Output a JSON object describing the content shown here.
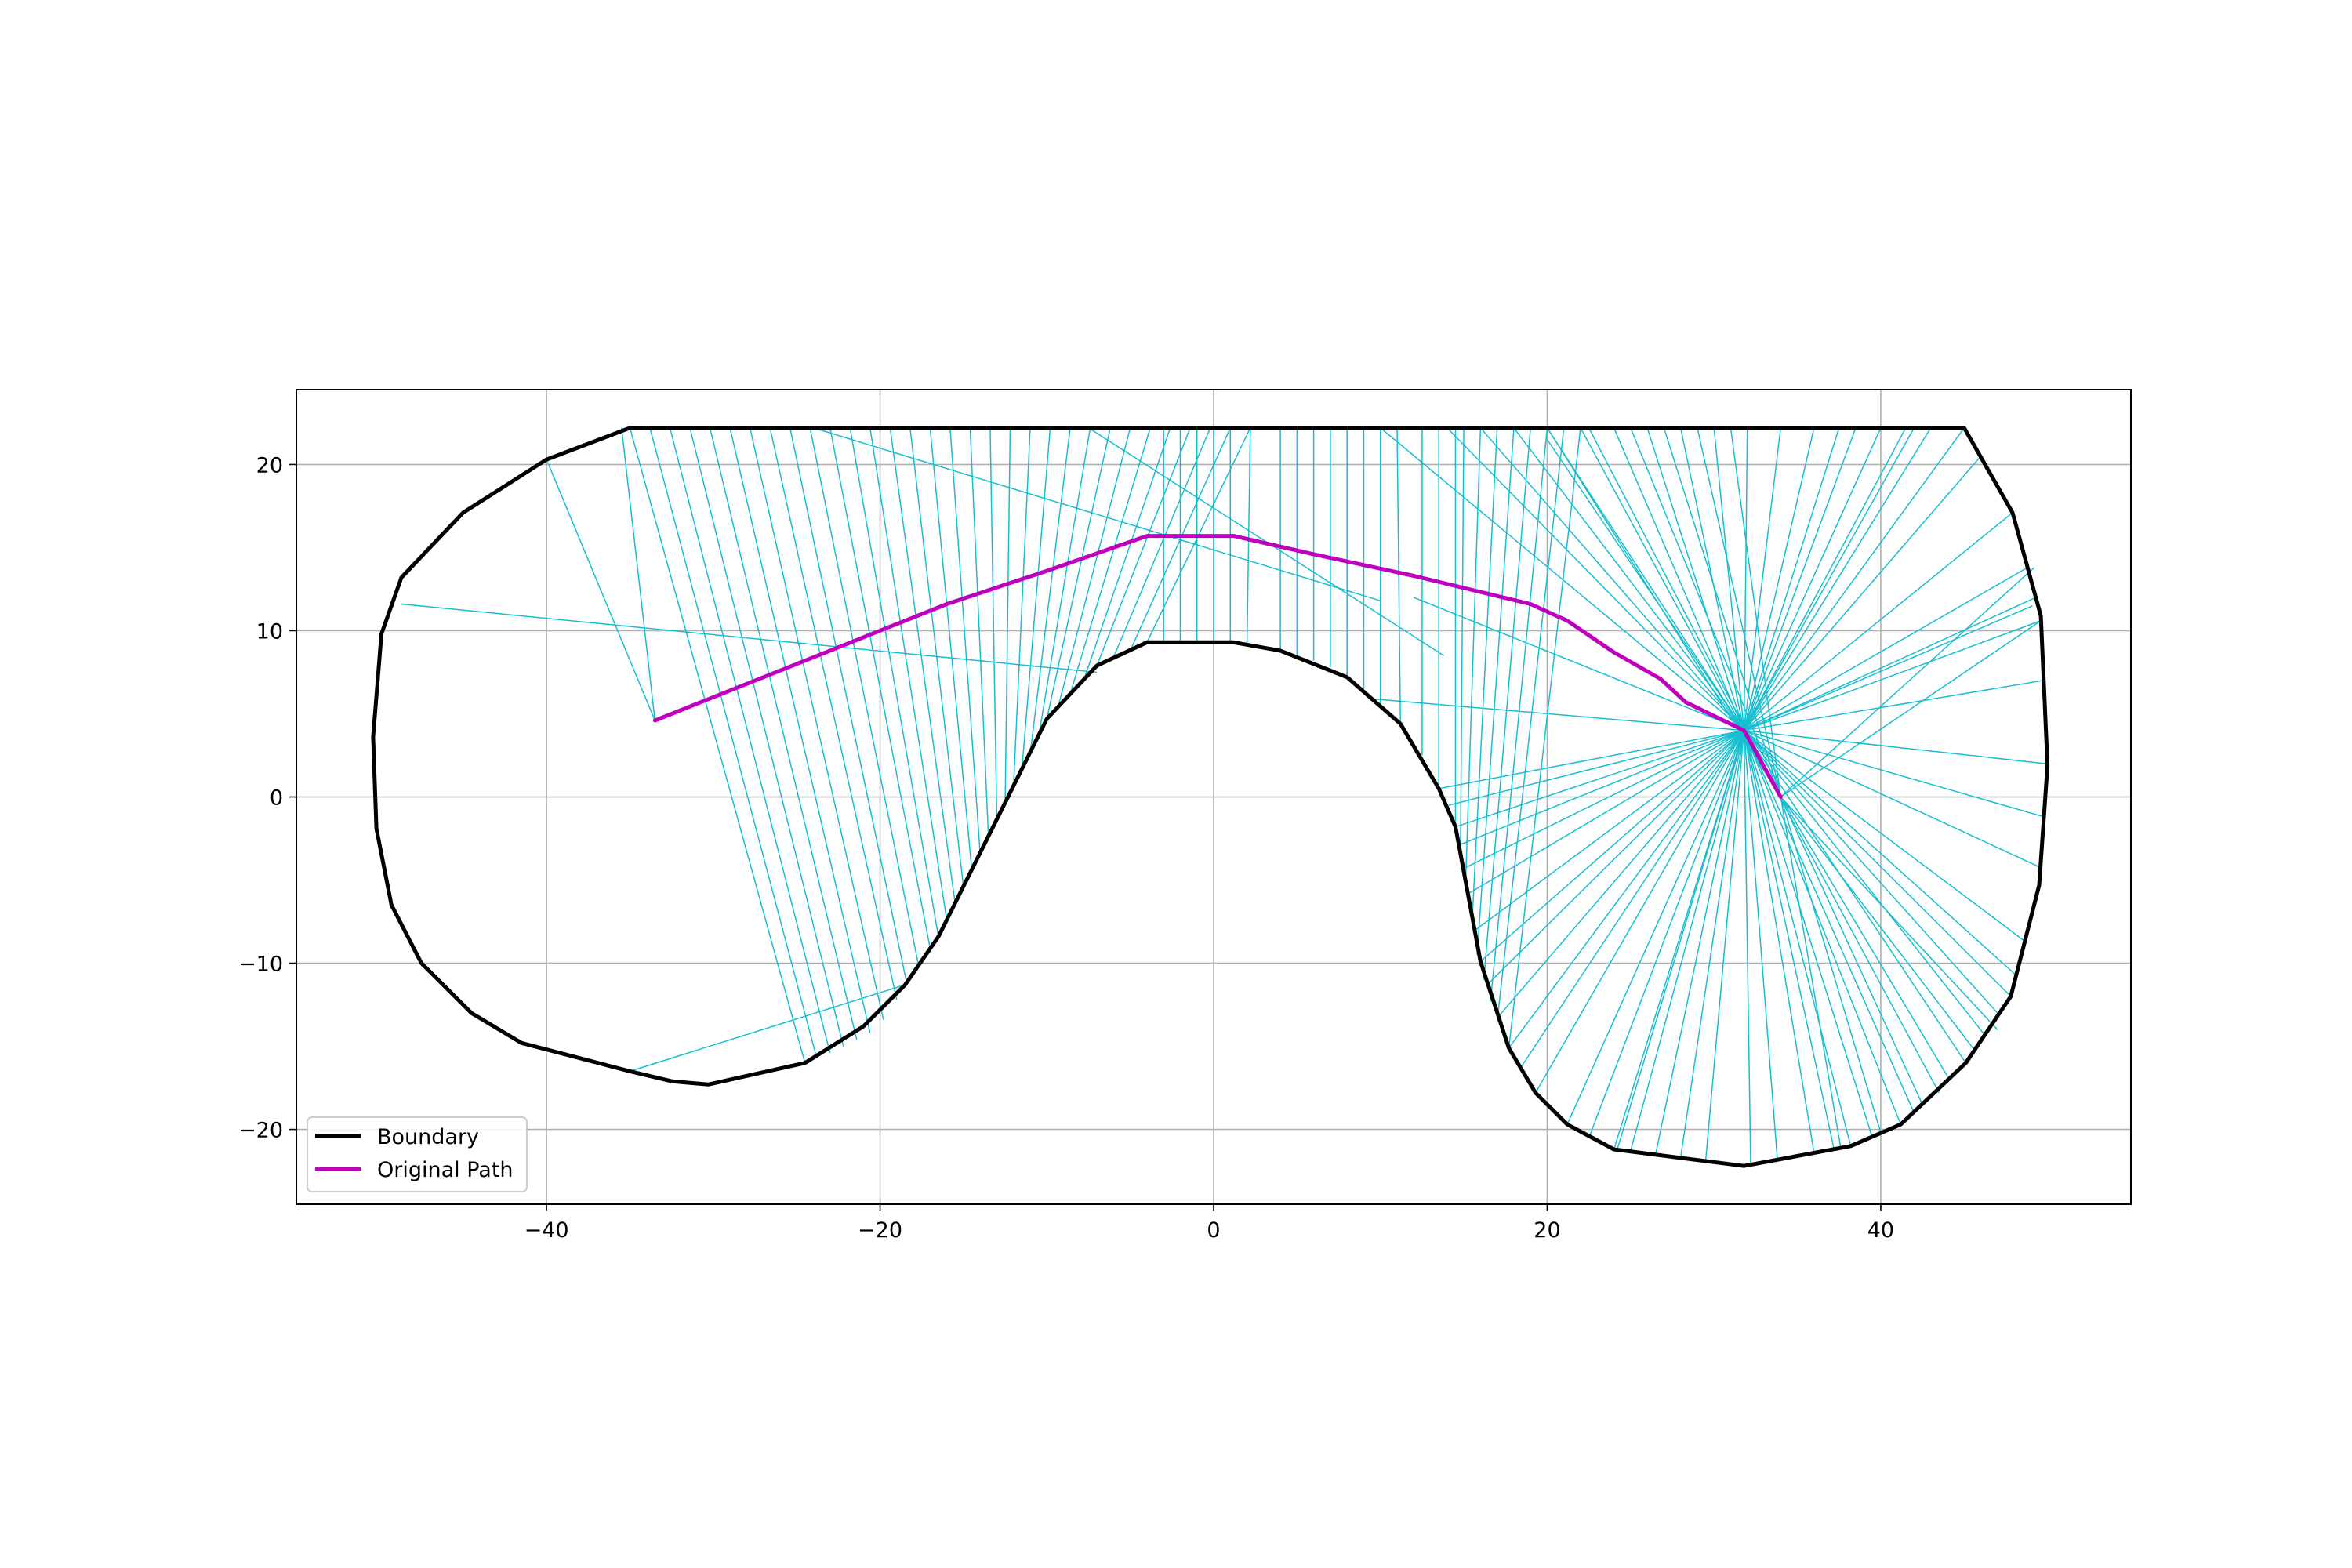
{
  "chart_data": {
    "type": "line",
    "title": "",
    "xlabel": "",
    "ylabel": "",
    "xlim": [
      -55,
      55
    ],
    "ylim": [
      -24.5,
      24.5
    ],
    "x_ticks": [
      -40,
      -20,
      0,
      20,
      40
    ],
    "y_ticks": [
      -20,
      -10,
      0,
      10,
      20
    ],
    "x_tick_labels": [
      "−40",
      "−20",
      "0",
      "20",
      "40"
    ],
    "y_tick_labels": [
      "−20",
      "−10",
      "0",
      "10",
      "20"
    ],
    "grid": true,
    "legend_position": "lower-left",
    "colors": {
      "boundary": "#000000",
      "path": "#bf00bf",
      "rays": "#17becf"
    },
    "series": [
      {
        "name": "Boundary",
        "role": "boundary",
        "points": [
          [
            -35,
            22.2
          ],
          [
            45,
            22.2
          ],
          [
            47.9,
            17.1
          ],
          [
            49.6,
            10.9
          ],
          [
            50,
            1.9
          ],
          [
            49.5,
            -5.3
          ],
          [
            47.8,
            -12
          ],
          [
            45.1,
            -16
          ],
          [
            41.2,
            -19.7
          ],
          [
            38.2,
            -21
          ],
          [
            31.8,
            -22.2
          ],
          [
            24,
            -21.2
          ],
          [
            21.2,
            -19.7
          ],
          [
            19.3,
            -17.8
          ],
          [
            17.7,
            -15.1
          ],
          [
            16,
            -9.9
          ],
          [
            14.5,
            -1.8
          ],
          [
            13.5,
            0.5
          ],
          [
            11.2,
            4.4
          ],
          [
            8,
            7.2
          ],
          [
            4,
            8.8
          ],
          [
            1.2,
            9.3
          ],
          [
            -4,
            9.3
          ],
          [
            -7,
            7.9
          ],
          [
            -10,
            4.7
          ],
          [
            -16.5,
            -8.4
          ],
          [
            -18.5,
            -11.3
          ],
          [
            -21,
            -13.8
          ],
          [
            -24.5,
            -16
          ],
          [
            -30.3,
            -17.3
          ],
          [
            -32.5,
            -17.1
          ],
          [
            -35,
            -16.5
          ],
          [
            -41.5,
            -14.8
          ],
          [
            -44.5,
            -13
          ],
          [
            -47.5,
            -10
          ],
          [
            -49.3,
            -6.5
          ],
          [
            -50.2,
            -1.9
          ],
          [
            -50.4,
            3.6
          ],
          [
            -49.9,
            9.8
          ],
          [
            -48.7,
            13.2
          ],
          [
            -45,
            17.1
          ],
          [
            -40,
            20.3
          ],
          [
            -35,
            22.2
          ]
        ]
      },
      {
        "name": "Original Path",
        "role": "path",
        "points": [
          [
            -33.5,
            4.6
          ],
          [
            -28,
            6.8
          ],
          [
            -22,
            9.2
          ],
          [
            -16,
            11.6
          ],
          [
            -10,
            13.6
          ],
          [
            -4,
            15.7
          ],
          [
            1.2,
            15.7
          ],
          [
            6,
            14.6
          ],
          [
            12,
            13.3
          ],
          [
            19,
            11.6
          ],
          [
            21.2,
            10.6
          ],
          [
            24,
            8.7
          ],
          [
            26.8,
            7.1
          ],
          [
            28.3,
            5.7
          ],
          [
            31.8,
            4
          ],
          [
            34,
            0
          ]
        ]
      }
    ],
    "rays": [
      [
        -33.5,
        4.6,
        -40,
        20.3
      ],
      [
        -33.5,
        4.6,
        -35.5,
        22.2
      ],
      [
        -35,
        22.2,
        -24.5,
        -16
      ],
      [
        -33.8,
        22.2,
        -23.8,
        -15.7
      ],
      [
        -32.6,
        22.2,
        -23,
        -15.4
      ],
      [
        -31.4,
        22.2,
        -22.2,
        -15
      ],
      [
        -30.2,
        22.2,
        -21.4,
        -14.6
      ],
      [
        -29,
        22.2,
        -20.6,
        -14.2
      ],
      [
        -27.8,
        22.2,
        -19.8,
        -13.4
      ],
      [
        -26.6,
        22.2,
        -19,
        -12.2
      ],
      [
        -25.4,
        22.2,
        -18.4,
        -11.2
      ],
      [
        -24.2,
        22.2,
        -17.7,
        -10.1
      ],
      [
        -23,
        22.2,
        -17,
        -9.1
      ],
      [
        -21.8,
        22.2,
        -16.5,
        -8.4
      ],
      [
        -20.6,
        22.2,
        -16,
        -7.4
      ],
      [
        -19.4,
        22.2,
        -15.5,
        -6.4
      ],
      [
        -18.2,
        22.2,
        -15,
        -5.4
      ],
      [
        -17,
        22.2,
        -14.5,
        -4.4
      ],
      [
        -15.8,
        22.2,
        -14,
        -3.4
      ],
      [
        -14.6,
        22.2,
        -13.5,
        -2.4
      ],
      [
        -13.4,
        22.2,
        -13,
        -1.4
      ],
      [
        -12.2,
        22.2,
        -12.5,
        -0.4
      ],
      [
        -11,
        22.2,
        -12,
        0.6
      ],
      [
        -9.8,
        22.2,
        -11.5,
        1.6
      ],
      [
        -8.6,
        22.2,
        -11,
        2.6
      ],
      [
        -7.4,
        22.2,
        -10.5,
        3.6
      ],
      [
        -6.2,
        22.2,
        -10,
        4.7
      ],
      [
        -5,
        22.2,
        -9.3,
        5.5
      ],
      [
        -3.8,
        22.2,
        -8.6,
        6.2
      ],
      [
        -2.6,
        22.2,
        -7.8,
        7
      ],
      [
        -1.4,
        22.2,
        -7,
        7.9
      ],
      [
        -0.2,
        22.2,
        -6,
        8.4
      ],
      [
        1,
        22.2,
        -5,
        8.8
      ],
      [
        2.2,
        22.2,
        -4,
        9.3
      ],
      [
        -3,
        22.2,
        -3,
        9.3
      ],
      [
        -2,
        22.2,
        -2,
        9.3
      ],
      [
        -1,
        22.2,
        -1,
        9.3
      ],
      [
        0,
        22.2,
        0,
        9.3
      ],
      [
        1,
        22.2,
        1,
        9.3
      ],
      [
        2.2,
        22.2,
        2,
        9.1
      ],
      [
        -48.7,
        11.6,
        -7,
        7.5
      ],
      [
        -35,
        -16.5,
        -18.5,
        -11.3
      ],
      [
        -7.5,
        22.2,
        13.8,
        8.5
      ],
      [
        -24,
        22.2,
        10,
        11.8
      ],
      [
        4,
        22.2,
        4,
        8.8
      ],
      [
        5,
        22.2,
        5,
        8.5
      ],
      [
        6,
        22.2,
        6,
        8.2
      ],
      [
        7,
        22.2,
        7,
        7.8
      ],
      [
        8,
        22.2,
        8,
        7.2
      ],
      [
        9,
        22.2,
        9,
        6.5
      ],
      [
        10,
        22.2,
        10,
        5.6
      ],
      [
        11,
        22.2,
        11.2,
        4.4
      ],
      [
        12.5,
        22.2,
        12.5,
        2.5
      ],
      [
        13.5,
        22.2,
        13.5,
        0.5
      ],
      [
        14.5,
        22.2,
        14.5,
        -1.8
      ],
      [
        15,
        22.2,
        14.8,
        -3.5
      ],
      [
        16,
        22.2,
        15.1,
        -5.5
      ],
      [
        17,
        22.2,
        15.5,
        -7.5
      ],
      [
        18,
        22.2,
        15.8,
        -9.5
      ],
      [
        19,
        22.2,
        16.2,
        -11
      ],
      [
        20,
        22.2,
        16.6,
        -12.3
      ],
      [
        21,
        22.2,
        17,
        -13.5
      ],
      [
        22,
        22.2,
        17.7,
        -15.1
      ],
      [
        31.8,
        4,
        10,
        22.2
      ],
      [
        31.8,
        4,
        14,
        22.2
      ],
      [
        31.8,
        4,
        16,
        22.2
      ],
      [
        31.8,
        4,
        18,
        22.2
      ],
      [
        31.8,
        4,
        20,
        22.2
      ],
      [
        31.8,
        4,
        22,
        22.2
      ],
      [
        31.8,
        4,
        24,
        22.2
      ],
      [
        31.8,
        4,
        26,
        22.2
      ],
      [
        31.8,
        4,
        28,
        22.2
      ],
      [
        31.8,
        4,
        30,
        22.2
      ],
      [
        31.8,
        4,
        32,
        22.2
      ],
      [
        31.8,
        4,
        34,
        22.2
      ],
      [
        31.8,
        4,
        36,
        22.2
      ],
      [
        31.8,
        4,
        37.5,
        22.2
      ],
      [
        31.8,
        4,
        38.5,
        22.2
      ],
      [
        31.8,
        4,
        40,
        22.2
      ],
      [
        31.8,
        4,
        41.5,
        22.2
      ],
      [
        31.8,
        4,
        43,
        22.2
      ],
      [
        31.8,
        4,
        45,
        22.2
      ],
      [
        31.8,
        4,
        46,
        20.5
      ],
      [
        31.8,
        4,
        47.9,
        17.1
      ],
      [
        31.8,
        4,
        48.8,
        13.8
      ],
      [
        31.8,
        4,
        49.3,
        12
      ],
      [
        31.8,
        4,
        49.6,
        10.6
      ],
      [
        31.8,
        4,
        49.7,
        7
      ],
      [
        31.8,
        4,
        49.9,
        2
      ],
      [
        31.8,
        4,
        49.8,
        -1.2
      ],
      [
        31.8,
        4,
        49.7,
        -4.3
      ],
      [
        31.8,
        4,
        48.8,
        -8.8
      ],
      [
        31.8,
        4,
        48.2,
        -10.8
      ],
      [
        31.8,
        4,
        47.8,
        -12
      ],
      [
        31.8,
        4,
        47,
        -13
      ],
      [
        31.8,
        4,
        46.3,
        -14.4
      ],
      [
        31.8,
        4,
        45.1,
        -16
      ],
      [
        31.8,
        4,
        43.5,
        -17.8
      ],
      [
        31.8,
        4,
        42,
        -19
      ],
      [
        31.8,
        4,
        41.2,
        -19.7
      ],
      [
        31.8,
        4,
        39.5,
        -20.5
      ],
      [
        31.8,
        4,
        38.2,
        -21
      ],
      [
        31.8,
        4,
        37.2,
        -21.2
      ],
      [
        31.8,
        4,
        36,
        -21.4
      ],
      [
        31.8,
        4,
        33.8,
        -21.8
      ],
      [
        31.8,
        4,
        32.2,
        -22.1
      ],
      [
        31.8,
        4,
        29.5,
        -21.9
      ],
      [
        31.8,
        4,
        28,
        -21.7
      ],
      [
        31.8,
        4,
        26.5,
        -21.5
      ],
      [
        31.8,
        4,
        25,
        -21.3
      ],
      [
        31.8,
        4,
        24.2,
        -21.2
      ],
      [
        31.8,
        4,
        24,
        -21.2
      ],
      [
        31.8,
        4,
        22.5,
        -20.5
      ],
      [
        31.8,
        4,
        21.2,
        -19.7
      ],
      [
        31.8,
        4,
        19.3,
        -17.8
      ],
      [
        31.8,
        4,
        18.4,
        -16.3
      ],
      [
        31.8,
        4,
        17.7,
        -15.1
      ],
      [
        31.8,
        4,
        17,
        -13.3
      ],
      [
        31.8,
        4,
        16.5,
        -11.2
      ],
      [
        31.8,
        4,
        16,
        -9.9
      ],
      [
        31.8,
        4,
        15.7,
        -8
      ],
      [
        31.8,
        4,
        15.3,
        -5.8
      ],
      [
        31.8,
        4,
        15,
        -4.3
      ],
      [
        31.8,
        4,
        14.7,
        -2.9
      ],
      [
        31.8,
        4,
        14.5,
        -1.8
      ],
      [
        31.8,
        4,
        14.1,
        -0.5
      ],
      [
        31.8,
        4,
        13.5,
        0.5
      ],
      [
        31.8,
        4,
        9.5,
        5.9
      ],
      [
        31.8,
        4,
        12,
        12
      ],
      [
        31.8,
        4,
        20,
        21.5
      ],
      [
        31.8,
        4,
        42,
        22.2
      ],
      [
        31.8,
        4,
        49.1,
        11.5
      ],
      [
        20,
        22.2,
        34,
        0
      ],
      [
        22.5,
        22.2,
        34,
        0
      ],
      [
        25,
        22.2,
        34,
        0
      ],
      [
        27,
        22.2,
        34,
        0
      ],
      [
        29,
        22.2,
        34,
        0
      ],
      [
        31,
        22.2,
        34,
        0
      ],
      [
        34,
        0,
        49.2,
        13.8
      ],
      [
        34,
        0,
        49.6,
        10.6
      ],
      [
        34,
        0,
        47,
        -14
      ],
      [
        34,
        0,
        45.6,
        -15.2
      ],
      [
        34,
        0,
        44,
        -16.8
      ],
      [
        34,
        0,
        42.5,
        -18.5
      ],
      [
        34,
        0,
        40,
        -20.2
      ],
      [
        34,
        0,
        37.6,
        -21.1
      ]
    ],
    "legend": [
      {
        "label": "Boundary",
        "color": "#000000"
      },
      {
        "label": "Original Path",
        "color": "#bf00bf"
      }
    ]
  }
}
